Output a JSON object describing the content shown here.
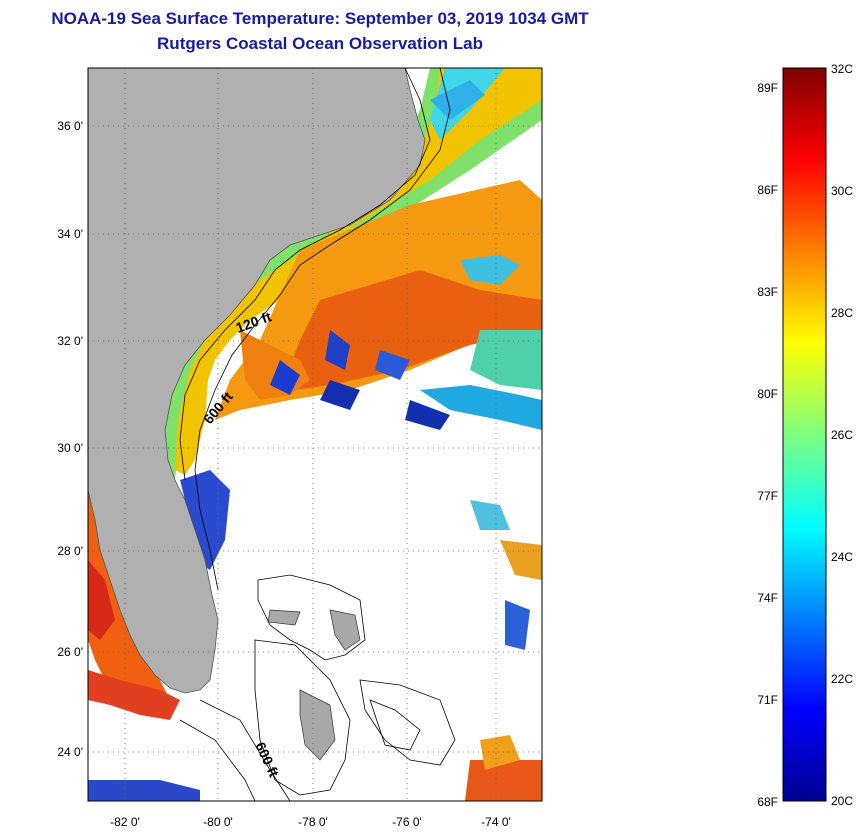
{
  "header": {
    "title": "NOAA-19 Sea Surface Temperature:  September 03, 2019 1034 GMT",
    "subtitle": "Rutgers Coastal Ocean Observation Lab"
  },
  "map": {
    "lat_ticks": [
      "36 0'",
      "34 0'",
      "32 0'",
      "30 0'",
      "28 0'",
      "26 0'",
      "24 0'"
    ],
    "lon_ticks": [
      "-82 0'",
      "-80 0'",
      "-78 0'",
      "-76 0'",
      "-74 0'"
    ],
    "contour_labels": [
      "120 ft",
      "600 ft",
      "600 ft"
    ],
    "colors": {
      "land": "#b0b0b0",
      "cloud": "#ffffff",
      "frame": "#000000"
    }
  },
  "colorbar": {
    "fahrenheit": [
      "89F",
      "86F",
      "83F",
      "80F",
      "77F",
      "74F",
      "71F",
      "68F"
    ],
    "celsius": [
      "32C",
      "30C",
      "28C",
      "26C",
      "24C",
      "22C",
      "20C"
    ]
  }
}
